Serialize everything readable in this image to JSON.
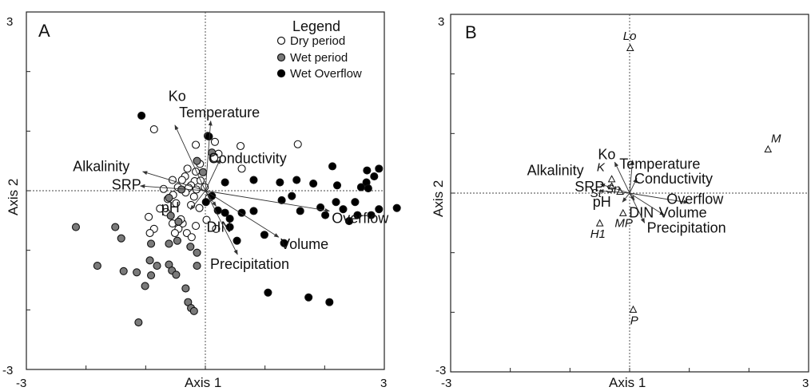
{
  "chart_data": [
    {
      "type": "scatter",
      "panel": "A",
      "xlabel": "Axis 1",
      "ylabel": "Axis 2",
      "xlim": [
        -3,
        3
      ],
      "ylim": [
        -3,
        3
      ],
      "x_tick_labels": [
        "-3",
        "3"
      ],
      "y_tick_labels": [
        "3",
        "-3"
      ],
      "legend": {
        "title": "Legend",
        "position": "top-right",
        "items": [
          {
            "label": "Dry period",
            "marker": "open-circle"
          },
          {
            "label": "Wet period",
            "marker": "gray-circle"
          },
          {
            "label": "Wet Overflow",
            "marker": "black-circle"
          }
        ]
      },
      "series": [
        {
          "name": "Dry period",
          "points": [
            [
              -0.86,
              1.03
            ],
            [
              -0.16,
              0.77
            ],
            [
              0.16,
              0.82
            ],
            [
              0.59,
              0.75
            ],
            [
              1.55,
              0.78
            ],
            [
              0.22,
              0.62
            ],
            [
              0.15,
              0.55
            ],
            [
              0.61,
              0.37
            ],
            [
              -0.09,
              0.45
            ],
            [
              -0.3,
              0.37
            ],
            [
              -0.16,
              0.32
            ],
            [
              -0.34,
              0.24
            ],
            [
              -0.55,
              0.18
            ],
            [
              -0.39,
              0.18
            ],
            [
              -0.18,
              0.16
            ],
            [
              -0.08,
              0.17
            ],
            [
              -0.24,
              0.09
            ],
            [
              -0.46,
              0.06
            ],
            [
              -0.7,
              0.03
            ],
            [
              -0.28,
              0.05
            ],
            [
              -0.15,
              0.02
            ],
            [
              -0.01,
              0.06
            ],
            [
              -0.33,
              -0.03
            ],
            [
              -0.54,
              -0.07
            ],
            [
              -0.19,
              -0.1
            ],
            [
              -0.63,
              -0.14
            ],
            [
              -0.49,
              -0.21
            ],
            [
              -0.24,
              -0.24
            ],
            [
              -0.1,
              -0.29
            ],
            [
              -0.76,
              -0.3
            ],
            [
              -0.66,
              -0.36
            ],
            [
              -0.95,
              -0.44
            ],
            [
              -0.55,
              -0.55
            ],
            [
              -0.38,
              -0.55
            ],
            [
              -0.16,
              -0.59
            ],
            [
              0.02,
              -0.49
            ],
            [
              -0.86,
              -0.64
            ],
            [
              -0.45,
              -0.64
            ],
            [
              -0.93,
              -0.71
            ],
            [
              -0.51,
              -0.71
            ],
            [
              -0.31,
              -0.71
            ],
            [
              -0.23,
              -0.78
            ],
            [
              0.18,
              -0.64
            ],
            [
              -0.41,
              -0.48
            ],
            [
              0.06,
              -0.12
            ]
          ]
        },
        {
          "name": "Wet period",
          "points": [
            [
              0.04,
              0.92
            ],
            [
              0.11,
              0.64
            ],
            [
              -0.14,
              0.5
            ],
            [
              -0.04,
              0.31
            ],
            [
              -0.4,
              0.02
            ],
            [
              -0.61,
              -0.12
            ],
            [
              -0.58,
              -0.42
            ],
            [
              -0.45,
              -0.52
            ],
            [
              -2.17,
              -0.61
            ],
            [
              -1.51,
              -0.61
            ],
            [
              -1.41,
              -0.8
            ],
            [
              -0.91,
              -0.89
            ],
            [
              -0.61,
              -0.89
            ],
            [
              -0.47,
              -0.84
            ],
            [
              -0.25,
              -0.94
            ],
            [
              -0.93,
              -1.17
            ],
            [
              -0.14,
              -1.04
            ],
            [
              -1.81,
              -1.26
            ],
            [
              -1.37,
              -1.35
            ],
            [
              -1.15,
              -1.37
            ],
            [
              -0.81,
              -1.26
            ],
            [
              -0.61,
              -1.24
            ],
            [
              -0.56,
              -1.34
            ],
            [
              -0.91,
              -1.42
            ],
            [
              -0.49,
              -1.41
            ],
            [
              -0.14,
              -1.26
            ],
            [
              -1.01,
              -1.6
            ],
            [
              -0.33,
              -1.64
            ],
            [
              -0.29,
              -1.87
            ],
            [
              -0.24,
              -1.97
            ],
            [
              -0.19,
              -2.02
            ],
            [
              -1.12,
              -2.21
            ]
          ]
        },
        {
          "name": "Wet Overflow",
          "points": [
            [
              -1.07,
              1.26
            ],
            [
              0.06,
              0.91
            ],
            [
              0.11,
              -0.09
            ],
            [
              0.01,
              -0.19
            ],
            [
              0.33,
              0.14
            ],
            [
              0.81,
              0.18
            ],
            [
              0.21,
              -0.33
            ],
            [
              0.33,
              -0.37
            ],
            [
              0.41,
              -0.47
            ],
            [
              0.61,
              -0.37
            ],
            [
              0.81,
              -0.34
            ],
            [
              0.41,
              -0.61
            ],
            [
              0.53,
              -0.84
            ],
            [
              0.99,
              -0.74
            ],
            [
              1.32,
              -0.88
            ],
            [
              1.28,
              -0.16
            ],
            [
              1.25,
              0.14
            ],
            [
              1.45,
              -0.09
            ],
            [
              1.53,
              0.18
            ],
            [
              1.81,
              0.12
            ],
            [
              1.59,
              -0.34
            ],
            [
              1.93,
              -0.28
            ],
            [
              2.01,
              -0.41
            ],
            [
              2.19,
              -0.19
            ],
            [
              2.31,
              -0.31
            ],
            [
              2.41,
              -0.51
            ],
            [
              2.51,
              -0.19
            ],
            [
              2.55,
              -0.41
            ],
            [
              2.61,
              0.06
            ],
            [
              2.7,
              0.14
            ],
            [
              2.78,
              -0.41
            ],
            [
              2.91,
              -0.31
            ],
            [
              3.21,
              -0.29
            ],
            [
              2.13,
              0.41
            ],
            [
              2.21,
              0.09
            ],
            [
              2.71,
              0.34
            ],
            [
              2.83,
              0.24
            ],
            [
              2.91,
              0.37
            ],
            [
              2.73,
              0.04
            ],
            [
              1.05,
              -1.71
            ],
            [
              1.73,
              -1.79
            ],
            [
              2.08,
              -1.87
            ]
          ]
        }
      ],
      "vectors": [
        {
          "label": "Ko",
          "end": [
            -0.51,
            1.1
          ],
          "label_at": [
            -0.62,
            1.51
          ]
        },
        {
          "label": "Temperature",
          "end": [
            0.09,
            1.17
          ],
          "label_at": [
            -0.44,
            1.23
          ]
        },
        {
          "label": "Conductivity",
          "end": [
            0.25,
            0.53
          ],
          "label_at": [
            0.05,
            0.46
          ]
        },
        {
          "label": "Alkalinity",
          "end": [
            -1.05,
            0.32
          ],
          "label_at": [
            -2.22,
            0.33
          ]
        },
        {
          "label": "SRP",
          "end": [
            -1.09,
            0.08
          ],
          "label_at": [
            -1.57,
            0.02
          ]
        },
        {
          "label": "pH",
          "end": [
            -0.25,
            -0.32
          ],
          "label_at": [
            -0.74,
            -0.36
          ]
        },
        {
          "label": "DIN",
          "end": [
            0.18,
            -0.26
          ],
          "label_at": [
            0.02,
            -0.69
          ]
        },
        {
          "label": "Overflow",
          "end": [
            2.08,
            -0.34
          ],
          "label_at": [
            2.12,
            -0.54
          ]
        },
        {
          "label": "Volume",
          "end": [
            1.23,
            -0.78
          ],
          "label_at": [
            1.26,
            -0.98
          ]
        },
        {
          "label": "Precipitation",
          "end": [
            0.54,
            -1.07
          ],
          "label_at": [
            0.08,
            -1.31
          ]
        }
      ]
    },
    {
      "type": "scatter",
      "panel": "B",
      "xlabel": "Axis 1",
      "ylabel": "Axis 2",
      "xlim": [
        -3,
        3
      ],
      "ylim": [
        -3,
        3
      ],
      "x_tick_labels": [
        "-3",
        "3"
      ],
      "y_tick_labels": [
        "3",
        "-3"
      ],
      "species": [
        {
          "label": "Lo",
          "point": [
            0.01,
            2.43
          ],
          "label_at": [
            -0.11,
            2.57
          ]
        },
        {
          "label": "M",
          "point": [
            2.32,
            0.73
          ],
          "label_at": [
            2.37,
            0.85
          ]
        },
        {
          "label": "K",
          "point": [
            -0.3,
            0.23
          ],
          "label_at": [
            -0.55,
            0.37
          ]
        },
        {
          "label": "Sn",
          "point": [
            -0.3,
            0.11
          ],
          "label_at": [
            -0.4,
            0.01
          ]
        },
        {
          "label": "St",
          "point": [
            -0.16,
            0.02
          ],
          "label_at": [
            -0.66,
            -0.07
          ]
        },
        {
          "label": "MP",
          "point": [
            -0.11,
            -0.34
          ],
          "label_at": [
            -0.25,
            -0.57
          ]
        },
        {
          "label": "H1",
          "point": [
            -0.5,
            -0.51
          ],
          "label_at": [
            -0.66,
            -0.75
          ]
        },
        {
          "label": "P",
          "point": [
            0.06,
            -1.96
          ],
          "label_at": [
            0.01,
            -2.2
          ]
        }
      ],
      "vectors": [
        {
          "label": "Ko",
          "end": [
            -0.25,
            0.52
          ],
          "label_at": [
            -0.53,
            0.57
          ]
        },
        {
          "label": "Temperature",
          "end": [
            0.05,
            0.55
          ],
          "label_at": [
            -0.17,
            0.41
          ]
        },
        {
          "label": "Conductivity",
          "end": [
            0.12,
            0.25
          ],
          "label_at": [
            0.08,
            0.16
          ]
        },
        {
          "label": "Alkalinity",
          "end": [
            -0.49,
            0.15
          ],
          "label_at": [
            -1.72,
            0.3
          ]
        },
        {
          "label": "SRP",
          "end": [
            -0.51,
            0.04
          ],
          "label_at": [
            -0.92,
            0.03
          ]
        },
        {
          "label": "pH",
          "end": [
            -0.12,
            -0.15
          ],
          "label_at": [
            -0.62,
            -0.23
          ]
        },
        {
          "label": "DIN",
          "end": [
            0.08,
            -0.12
          ],
          "label_at": [
            -0.01,
            -0.41
          ]
        },
        {
          "label": "Overflow",
          "end": [
            0.98,
            -0.16
          ],
          "label_at": [
            0.62,
            -0.18
          ]
        },
        {
          "label": "Volume",
          "end": [
            0.58,
            -0.37
          ],
          "label_at": [
            0.49,
            -0.41
          ]
        },
        {
          "label": "Precipitation",
          "end": [
            0.25,
            -0.5
          ],
          "label_at": [
            0.29,
            -0.66
          ]
        }
      ]
    }
  ]
}
